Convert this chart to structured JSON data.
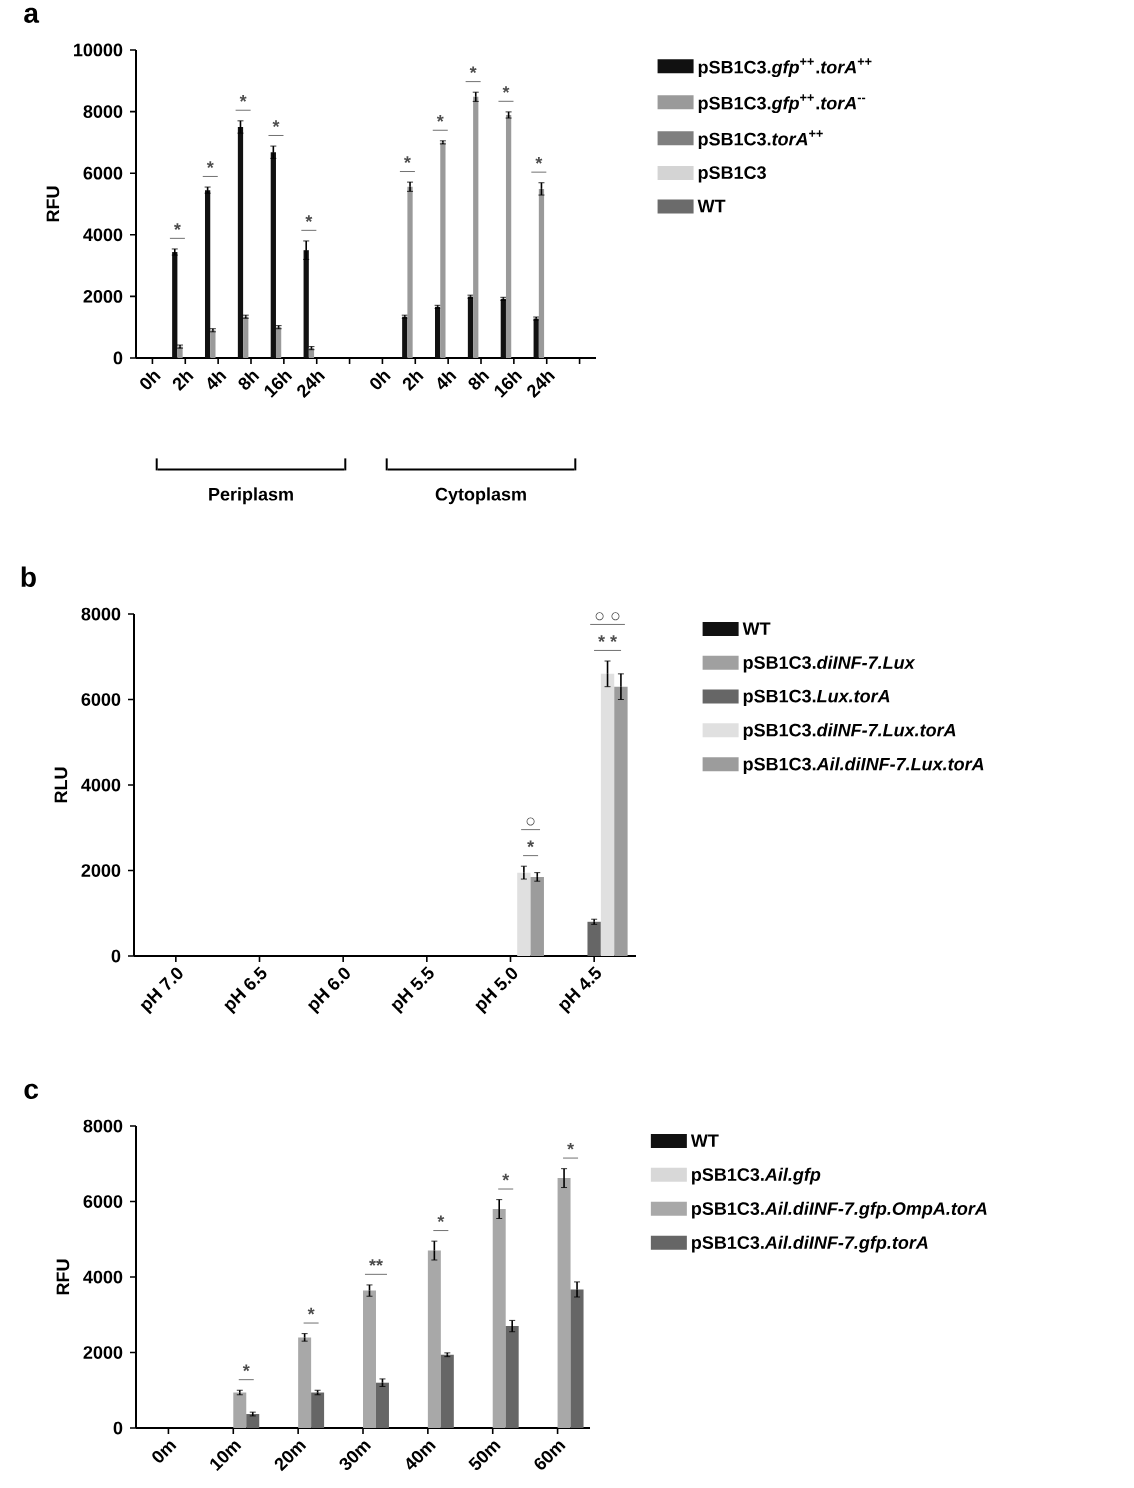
{
  "chart_data": [
    {
      "type": "bar",
      "title": "a",
      "ylabel": "RFU",
      "categories": [
        "0h",
        "2h",
        "4h",
        "8h",
        "16h",
        "24h",
        null,
        "0h",
        "2h",
        "4h",
        "8h",
        "16h",
        "24h",
        null
      ],
      "ylim": [
        0,
        10000
      ],
      "yticks": [
        0,
        2000,
        4000,
        6000,
        8000,
        10000
      ],
      "legend": "right",
      "series": [
        {
          "name": "pSB1C3.*gfp*$^{++}$.*torA*$^{++}$",
          "color": "#111111",
          "values": [
            0,
            3440,
            5450,
            7500,
            6680,
            3500,
            null,
            0,
            1340,
            1660,
            1990,
            1920,
            1280,
            null
          ],
          "errors": [
            null,
            100,
            100,
            200,
            200,
            300,
            null,
            null,
            50,
            50,
            50,
            50,
            50,
            null
          ]
        },
        {
          "name": "pSB1C3.*gfp*$^{++}$.*torA*$^{--}$",
          "color": "#9a9a9a",
          "values": [
            0,
            370,
            900,
            1340,
            1000,
            320,
            null,
            0,
            5560,
            7000,
            8480,
            7890,
            5490,
            null
          ],
          "errors": [
            null,
            50,
            50,
            50,
            50,
            50,
            null,
            null,
            150,
            50,
            150,
            100,
            200,
            null
          ]
        },
        {
          "name": "pSB1C3.*torA*$^{++}$",
          "color": "#7f7f7f",
          "values": [
            0,
            0,
            0,
            0,
            0,
            0,
            null,
            0,
            0,
            0,
            0,
            0,
            0,
            null
          ]
        },
        {
          "name": "pSB1C3",
          "color": "#d4d4d4",
          "values": [
            0,
            0,
            0,
            0,
            0,
            0,
            null,
            0,
            0,
            0,
            0,
            0,
            0,
            null
          ]
        },
        {
          "name": "WT",
          "color": "#6b6b6b",
          "values": [
            0,
            0,
            0,
            0,
            0,
            0,
            null,
            0,
            0,
            0,
            0,
            0,
            0,
            null
          ]
        }
      ],
      "annotations": [
        "*",
        "*",
        "*",
        "*",
        "*",
        "*",
        "*",
        "*",
        "*",
        "*",
        "Periplasm",
        "Cytoplasm"
      ]
    },
    {
      "type": "bar",
      "title": "b",
      "ylabel": "RLU",
      "categories": [
        "pH 7.0",
        "pH 6.5",
        "pH 6.0",
        "pH 5.5",
        "pH 5.0",
        "pH 4.5"
      ],
      "ylim": [
        0,
        8000
      ],
      "yticks": [
        0,
        2000,
        4000,
        6000,
        8000
      ],
      "legend": "right",
      "series": [
        {
          "name": "WT",
          "color": "#111111",
          "values": [
            0,
            0,
            0,
            0,
            0,
            0
          ]
        },
        {
          "name": "pSB1C3.*diINF-7.Lux*",
          "color": "#a0a0a0",
          "values": [
            0,
            0,
            0,
            0,
            0,
            0
          ]
        },
        {
          "name": "pSB1C3.*Lux.torA*",
          "color": "#666666",
          "values": [
            0,
            0,
            0,
            0,
            0,
            800
          ],
          "errors": [
            null,
            null,
            null,
            null,
            null,
            60
          ]
        },
        {
          "name": "pSB1C3.*diINF-7.Lux.torA*",
          "color": "#e0e0e0",
          "values": [
            0,
            0,
            0,
            0,
            1950,
            6600
          ],
          "errors": [
            null,
            null,
            null,
            null,
            150,
            300
          ]
        },
        {
          "name": "pSB1C3.*Ail.diINF-7.Lux.torA*",
          "color": "#9c9c9c",
          "values": [
            0,
            0,
            0,
            0,
            1850,
            6300
          ],
          "errors": [
            null,
            null,
            null,
            null,
            100,
            300
          ]
        }
      ],
      "annotations": [
        "*",
        "○",
        "* *",
        "○ ○"
      ]
    },
    {
      "type": "bar",
      "title": "c",
      "ylabel": "RFU",
      "categories": [
        "0m",
        "10m",
        "20m",
        "30m",
        "40m",
        "50m",
        "60m"
      ],
      "ylim": [
        0,
        8000
      ],
      "yticks": [
        0,
        2000,
        4000,
        6000,
        8000
      ],
      "legend": "right",
      "series": [
        {
          "name": "WT",
          "color": "#111111",
          "values": [
            0,
            0,
            0,
            0,
            0,
            0,
            0
          ]
        },
        {
          "name": "pSB1C3.*Ail.gfp*",
          "color": "#d8d8d8",
          "values": [
            0,
            0,
            0,
            0,
            0,
            0,
            0
          ]
        },
        {
          "name": "pSB1C3.*Ail.diINF-7.gfp.OmpA.torA*",
          "color": "#a8a8a8",
          "values": [
            0,
            940,
            2400,
            3640,
            4700,
            5800,
            6620
          ],
          "errors": [
            null,
            60,
            100,
            150,
            250,
            250,
            250
          ]
        },
        {
          "name": "pSB1C3.*Ail.diINF-7.gfp.torA*",
          "color": "#666666",
          "values": [
            0,
            370,
            940,
            1200,
            1940,
            2700,
            3670
          ],
          "errors": [
            null,
            50,
            60,
            100,
            50,
            150,
            200
          ]
        }
      ],
      "annotations": [
        "*",
        "*",
        "**",
        "*",
        "*",
        "*"
      ]
    }
  ]
}
